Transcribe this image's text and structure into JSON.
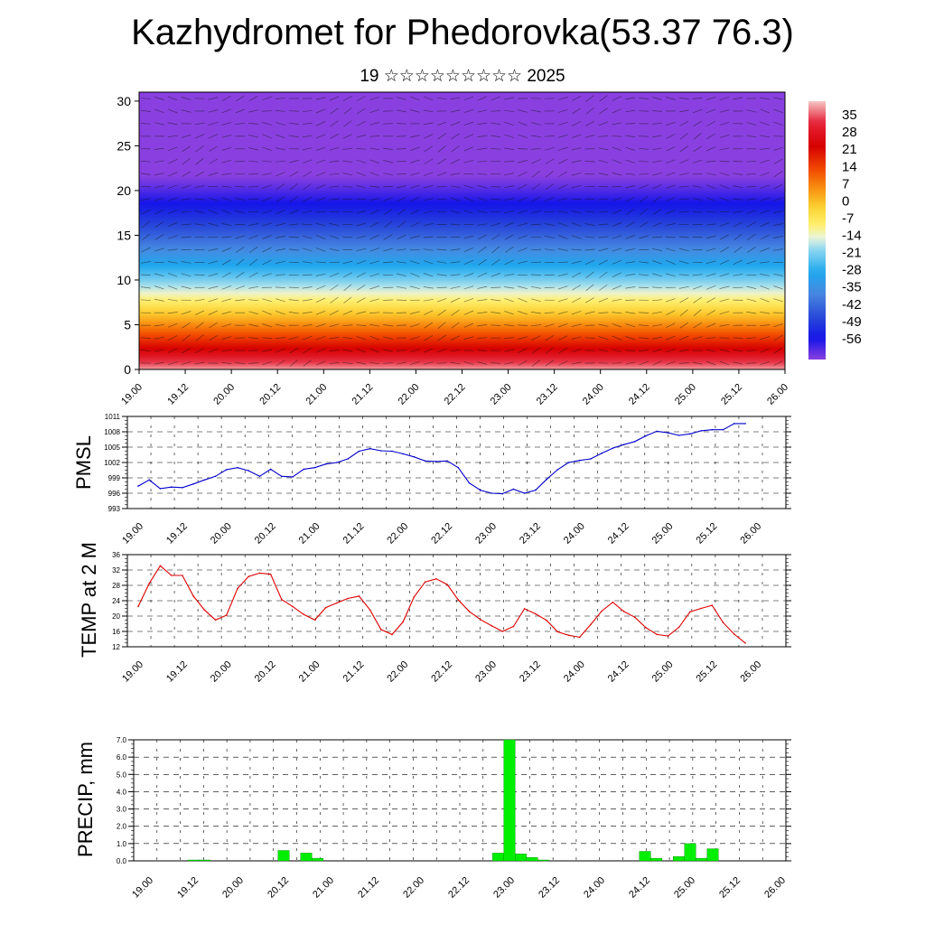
{
  "title": "Kazhydromet for Phedorovka(53.37 76.3)",
  "subtitle": "19 ☆☆☆☆☆☆☆☆☆ 2025",
  "colors": {
    "pmsl_line": "#0000cc",
    "temp_line": "#dd0000",
    "precip_bar": "#00ee00",
    "precip_bar_edge": "#008800"
  },
  "chart_data": [
    {
      "type": "heatmap",
      "name": "vertical cross-section",
      "ylim": [
        0,
        31
      ],
      "yticks": [
        0,
        5,
        10,
        15,
        20,
        25,
        30
      ],
      "x_tick_labels": [
        "19.00",
        "19.12",
        "20.00",
        "20.12",
        "21.00",
        "21.12",
        "22.00",
        "22.12",
        "23.00",
        "23.12",
        "24.00",
        "24.12",
        "25.00",
        "25.12",
        "26.00"
      ],
      "colorbar_labels": [
        35,
        28,
        21,
        14,
        7,
        0,
        -7,
        -14,
        -21,
        -28,
        -35,
        -42,
        -49,
        -56
      ],
      "colorbar_stops": [
        {
          "v": 38,
          "c": "#f4c6c6"
        },
        {
          "v": 30,
          "c": "#e6243a"
        },
        {
          "v": 21,
          "c": "#d60000"
        },
        {
          "v": 12,
          "c": "#f24a00"
        },
        {
          "v": 5,
          "c": "#f89010"
        },
        {
          "v": -2,
          "c": "#fbd030"
        },
        {
          "v": -9,
          "c": "#fff070"
        },
        {
          "v": -14,
          "c": "#e8f4e0"
        },
        {
          "v": -18,
          "c": "#90d8f0"
        },
        {
          "v": -27,
          "c": "#1ea8ee"
        },
        {
          "v": -35,
          "c": "#4888e0"
        },
        {
          "v": -44,
          "c": "#2848d8"
        },
        {
          "v": -52,
          "c": "#1414e8"
        },
        {
          "v": -60,
          "c": "#8a40e0"
        }
      ]
    },
    {
      "type": "line",
      "ylabel": "PMSL",
      "ylim": [
        993,
        1011
      ],
      "yticks": [
        993,
        996,
        999,
        1002,
        1005,
        1008,
        1011
      ],
      "x_tick_labels": [
        "19.00",
        "19.12",
        "20.00",
        "20.12",
        "21.00",
        "21.12",
        "22.00",
        "22.12",
        "23.00",
        "23.12",
        "24.00",
        "24.12",
        "25.00",
        "25.12",
        "26.00"
      ],
      "x": [
        0,
        3,
        6,
        9,
        12,
        15,
        18,
        21,
        24,
        27,
        30,
        33,
        36,
        39,
        42,
        45,
        48,
        51,
        54,
        57,
        60,
        63,
        66,
        69,
        72,
        75,
        78,
        81,
        84,
        87,
        90,
        93,
        96,
        99,
        102,
        105,
        108,
        111,
        114,
        117,
        120,
        123,
        126,
        129,
        132,
        135,
        138,
        141,
        144,
        147,
        150,
        153,
        156,
        159,
        162,
        165
      ],
      "values": [
        997.4,
        998.6,
        996.9,
        997.2,
        997.1,
        997.8,
        998.6,
        999.3,
        1000.6,
        1001.0,
        1000.4,
        999.3,
        1000.7,
        999.3,
        999.2,
        1000.7,
        1001.0,
        1001.7,
        1002.0,
        1002.7,
        1004.2,
        1004.7,
        1004.3,
        1004.2,
        1003.7,
        1003.1,
        1002.3,
        1002.2,
        1002.3,
        1001.0,
        998.0,
        996.6,
        996.0,
        995.9,
        996.8,
        996.0,
        996.6,
        998.7,
        1000.6,
        1002.0,
        1002.4,
        1002.7,
        1003.8,
        1004.8,
        1005.5,
        1006.1,
        1007.2,
        1008.1,
        1007.8,
        1007.3,
        1007.6,
        1008.2,
        1008.4,
        1008.4,
        1009.6,
        1009.6
      ]
    },
    {
      "type": "line",
      "ylabel": "TEMP at 2 M",
      "ylim": [
        12,
        36
      ],
      "yticks": [
        12,
        16,
        20,
        24,
        28,
        32,
        36
      ],
      "x_tick_labels": [
        "19.00",
        "19.12",
        "20.00",
        "20.12",
        "21.00",
        "21.12",
        "22.00",
        "22.12",
        "23.00",
        "23.12",
        "24.00",
        "24.12",
        "25.00",
        "25.12",
        "26.00"
      ],
      "x": [
        0,
        3,
        6,
        9,
        12,
        15,
        18,
        21,
        24,
        27,
        30,
        33,
        36,
        39,
        42,
        45,
        48,
        51,
        54,
        57,
        60,
        63,
        66,
        69,
        72,
        75,
        78,
        81,
        84,
        87,
        90,
        93,
        96,
        99,
        102,
        105,
        108,
        111,
        114,
        117,
        120,
        123,
        126,
        129,
        132,
        135,
        138,
        141,
        144,
        147,
        150,
        153,
        156,
        159,
        162,
        165
      ],
      "values": [
        22.5,
        28.5,
        33.1,
        30.6,
        30.6,
        25.2,
        21.6,
        19.0,
        20.2,
        27.2,
        30.3,
        31.2,
        30.9,
        24.3,
        22.5,
        20.4,
        19.0,
        22.2,
        23.4,
        24.6,
        25.2,
        21.6,
        16.5,
        15.2,
        18.5,
        25.0,
        28.9,
        29.7,
        28.2,
        24.2,
        21.2,
        19.1,
        17.5,
        16.0,
        17.3,
        21.9,
        20.6,
        18.9,
        15.9,
        15.0,
        14.5,
        17.8,
        21.3,
        23.6,
        21.2,
        19.7,
        17.0,
        15.2,
        14.8,
        17.1,
        21.1,
        22.0,
        22.8,
        18.3,
        15.3,
        13.0
      ]
    },
    {
      "type": "bar",
      "ylabel": "PRECIP, mm",
      "ylim": [
        0,
        7
      ],
      "yticks": [
        0.0,
        1.0,
        2.0,
        3.0,
        4.0,
        5.0,
        6.0,
        7.0
      ],
      "x_tick_labels": [
        "19.00",
        "19.12",
        "20.00",
        "20.12",
        "21.00",
        "21.12",
        "22.00",
        "22.12",
        "23.00",
        "23.12",
        "24.00",
        "24.12",
        "25.00",
        "25.12",
        "26.00"
      ],
      "x": [
        12,
        15,
        36,
        42,
        45,
        93,
        96,
        99,
        102,
        105,
        132,
        135,
        141,
        144,
        147,
        150
      ],
      "values": [
        0.05,
        0.05,
        0.6,
        0.45,
        0.15,
        0.45,
        7.0,
        0.4,
        0.2,
        0.05,
        0.55,
        0.15,
        0.25,
        1.0,
        0.15,
        0.7
      ]
    }
  ]
}
